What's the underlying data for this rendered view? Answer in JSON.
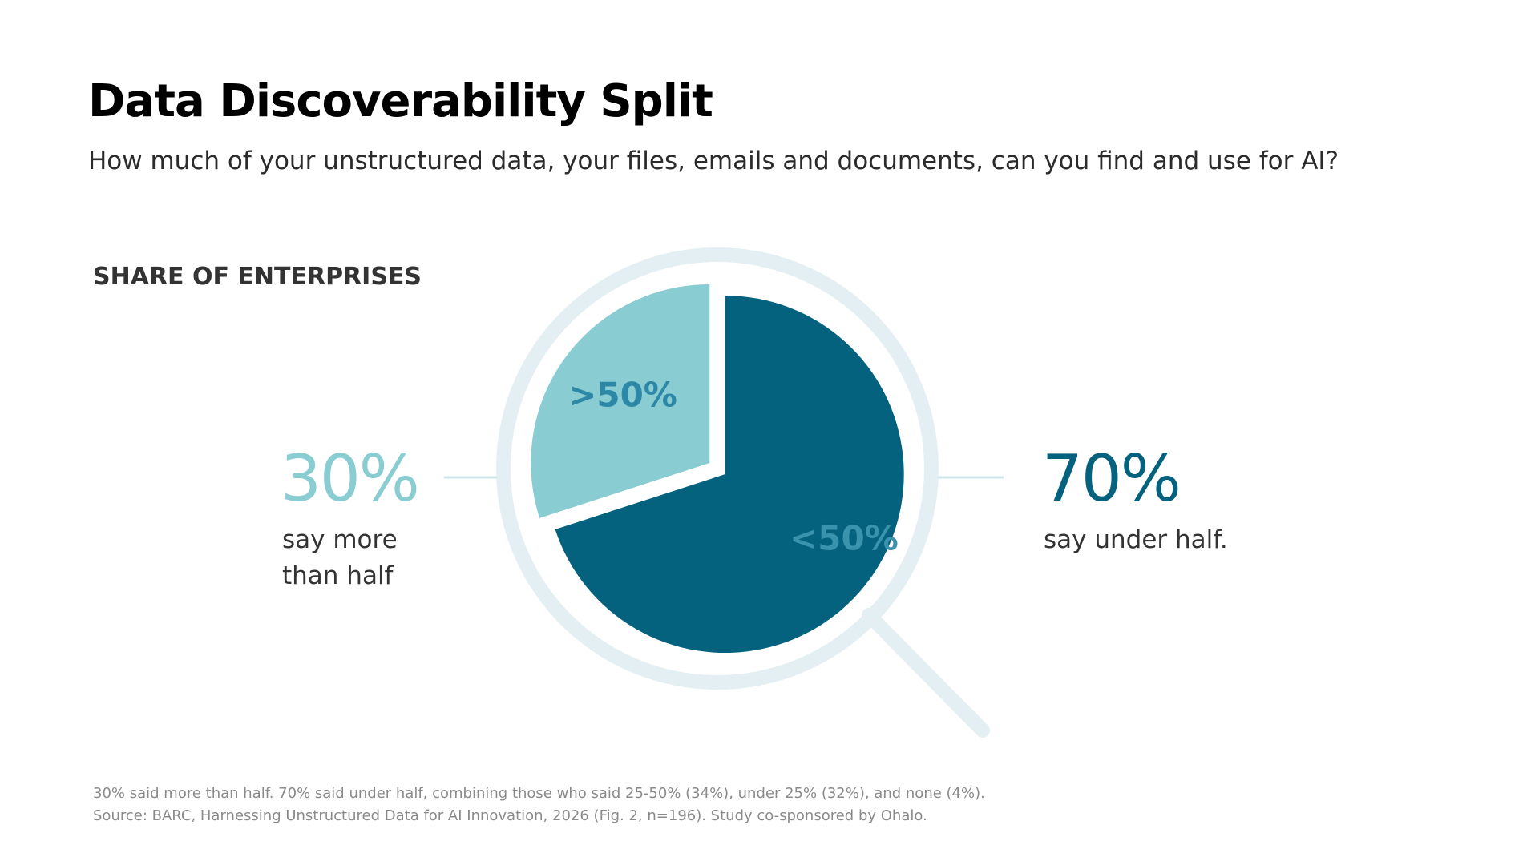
{
  "title": "Data Discoverability Split",
  "subtitle": "How much of your unstructured data, your files, emails and documents, can you find and use for AI?",
  "section_label": "SHARE OF ENTERPRISES",
  "callouts": {
    "left": {
      "value": "30%",
      "text": "say more than half"
    },
    "right": {
      "value": "70%",
      "text": "say under half."
    }
  },
  "footnotes": [
    "30% said more than half.  70% said under half, combining those who said 25-50% (34%), under 25% (32%), and none (4%).",
    "Source: BARC, Harnessing Unstructured Data for AI Innovation, 2026 (Fig. 2, n=196). Study co-sponsored by Ohalo."
  ],
  "colors": {
    "light_teal": "#89cdd2",
    "dark_teal": "#05627f",
    "ring": "#e3eff3",
    "connector": "#cfe6e8"
  },
  "icon": "magnifying-glass-icon",
  "chart_data": {
    "type": "pie",
    "categories": [
      ">50%",
      "<50%"
    ],
    "values": [
      30,
      70
    ],
    "slice_labels": [
      ">50%",
      "<50%"
    ],
    "colors": [
      "#89cdd2",
      "#05627f"
    ],
    "start": "12 o'clock",
    "direction": "counter-clockwise for first slice",
    "legend": "none"
  }
}
